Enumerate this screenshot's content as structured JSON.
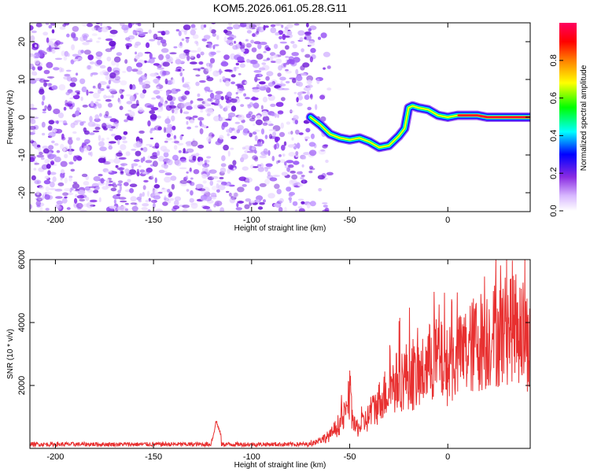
{
  "title": "KOM5.2026.061.05.28.G11",
  "colors": {
    "snr_line": "#e83030",
    "speckle": "#8a2be2",
    "frame": "#000000"
  },
  "chart_data": [
    {
      "type": "heatmap",
      "xlabel": "Height of straight line (km)",
      "ylabel": "Frequency (Hz)",
      "xlim": [
        -213,
        42
      ],
      "ylim": [
        -25,
        25
      ],
      "xticks": [
        -200,
        -150,
        -100,
        -50,
        0
      ],
      "yticks": [
        -20,
        -10,
        0,
        10,
        20
      ],
      "xtick_labels": [
        "-200",
        "-150",
        "-100",
        "-50",
        "0"
      ],
      "ytick_labels": [
        "-20",
        "-10",
        "0",
        "10",
        "20"
      ],
      "noise_region_x": [
        -213,
        -68
      ],
      "meteor_trace": {
        "x": [
          -70,
          -65,
          -60,
          -55,
          -50,
          -45,
          -40,
          -35,
          -30,
          -25,
          -22,
          -20,
          -18,
          -15,
          -10,
          -5,
          0,
          5,
          10,
          15,
          20,
          25,
          30,
          35,
          42
        ],
        "freq": [
          0,
          -2,
          -4.5,
          -5.5,
          -6,
          -5.5,
          -6.5,
          -8,
          -7.5,
          -5,
          -3,
          2.5,
          3,
          2.5,
          2,
          0.5,
          0,
          0.5,
          0.5,
          0.5,
          0,
          0,
          0,
          0,
          0
        ]
      },
      "colorbar": {
        "label": "Normalized spectral amplitude",
        "range": [
          0,
          1
        ],
        "ticks": [
          0.0,
          0.2,
          0.4,
          0.6,
          0.8
        ],
        "tick_labels": [
          "0.0",
          "0.2",
          "0.4",
          "0.6",
          "0.8"
        ],
        "stops": [
          "#ffffff",
          "#e0c8ff",
          "#8a2be2",
          "#0000ff",
          "#00ffff",
          "#00ff00",
          "#ffff00",
          "#ff8000",
          "#ff0000",
          "#ff0060"
        ]
      }
    },
    {
      "type": "line",
      "xlabel": "Height of straight line (km)",
      "ylabel": "SNR (10 * v/v)",
      "xlim": [
        -213,
        42
      ],
      "ylim": [
        0,
        6000
      ],
      "xticks": [
        -200,
        -150,
        -100,
        -50,
        0
      ],
      "yticks": [
        2000,
        4000,
        6000
      ],
      "xtick_labels": [
        "-200",
        "-150",
        "-100",
        "-50",
        "0"
      ],
      "ytick_labels": [
        "2000",
        "4000",
        "6000"
      ],
      "series": [
        {
          "name": "SNR",
          "envelope_x": [
            -213,
            -125,
            -120,
            -118,
            -115,
            -110,
            -70,
            -60,
            -55,
            -52,
            -50,
            -48,
            -45,
            -40,
            -35,
            -30,
            -25,
            -20,
            -15,
            -10,
            -5,
            0,
            5,
            10,
            15,
            20,
            25,
            30,
            33,
            35,
            38,
            40,
            42
          ],
          "envelope_y": [
            150,
            150,
            300,
            900,
            300,
            150,
            200,
            600,
            1200,
            1600,
            2500,
            1000,
            1000,
            1500,
            2200,
            2800,
            3200,
            3500,
            3200,
            4000,
            4200,
            3800,
            4200,
            4600,
            5000,
            5200,
            5400,
            5600,
            6000,
            5700,
            5600,
            5200,
            4700
          ]
        }
      ]
    }
  ]
}
